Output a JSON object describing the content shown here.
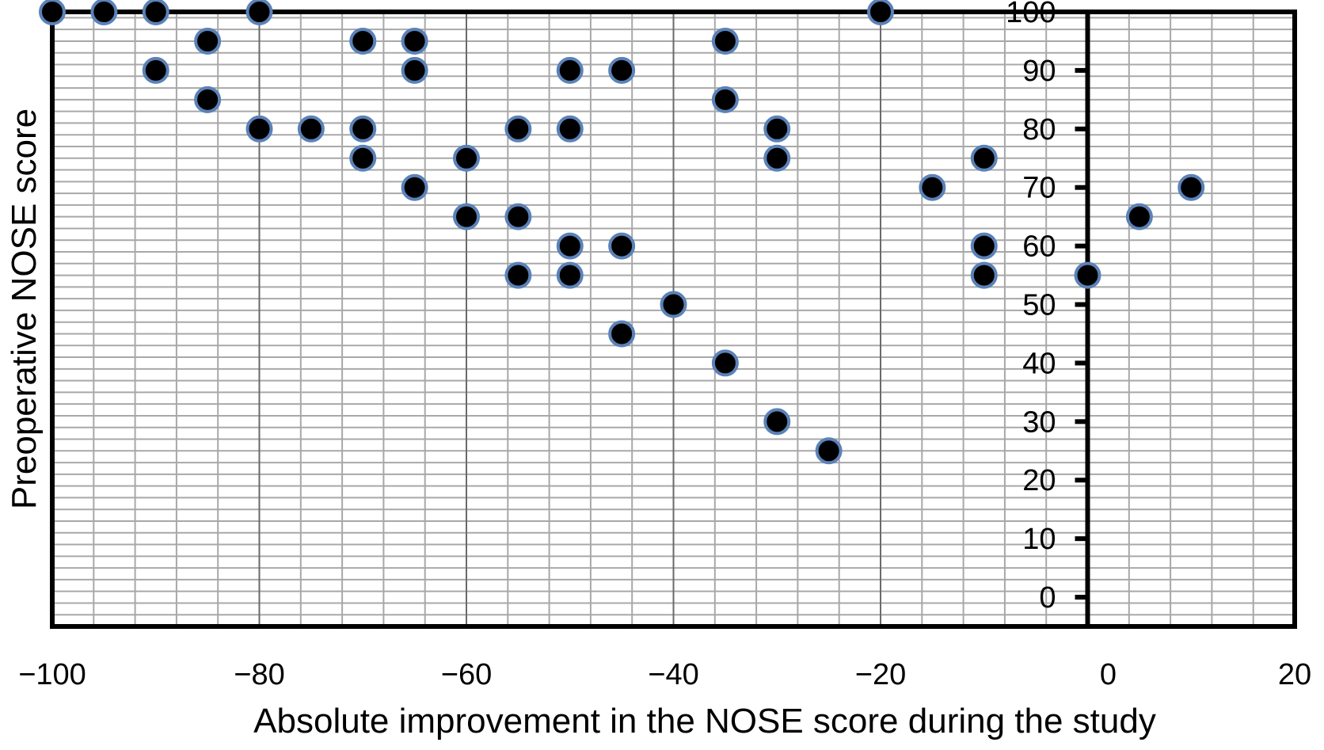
{
  "chart_data": {
    "type": "scatter",
    "title": "",
    "xlabel": "Absolute improvement in the NOSE score during the study",
    "ylabel": "Preoperative NOSE score",
    "xlim": [
      -100,
      20
    ],
    "ylim": [
      -5,
      100
    ],
    "x_ticks": [
      -100,
      -80,
      -60,
      -40,
      -20,
      0,
      20
    ],
    "x_tick_labels": [
      "−100",
      "−80",
      "−60",
      "−40",
      "−20",
      "0",
      "20"
    ],
    "y_ticks": [
      0,
      10,
      20,
      30,
      40,
      50,
      60,
      70,
      80,
      90,
      100
    ],
    "y_tick_labels": [
      "0",
      "10",
      "20",
      "30",
      "40",
      "50",
      "60",
      "70",
      "80",
      "90",
      "100"
    ],
    "grid": true,
    "legend": "none",
    "marker_color": "#000000",
    "marker_edge_color": "#5b82b8",
    "points": [
      {
        "x": -100,
        "y": 100
      },
      {
        "x": -95,
        "y": 100
      },
      {
        "x": -90,
        "y": 100
      },
      {
        "x": -80,
        "y": 100
      },
      {
        "x": -20,
        "y": 100
      },
      {
        "x": -85,
        "y": 95
      },
      {
        "x": -70,
        "y": 95
      },
      {
        "x": -65,
        "y": 95
      },
      {
        "x": -35,
        "y": 95
      },
      {
        "x": -90,
        "y": 90
      },
      {
        "x": -65,
        "y": 90
      },
      {
        "x": -50,
        "y": 90
      },
      {
        "x": -45,
        "y": 90
      },
      {
        "x": -85,
        "y": 85
      },
      {
        "x": -35,
        "y": 85
      },
      {
        "x": -80,
        "y": 80
      },
      {
        "x": -75,
        "y": 80
      },
      {
        "x": -70,
        "y": 80
      },
      {
        "x": -55,
        "y": 80
      },
      {
        "x": -50,
        "y": 80
      },
      {
        "x": -30,
        "y": 80
      },
      {
        "x": -70,
        "y": 75
      },
      {
        "x": -60,
        "y": 75
      },
      {
        "x": -30,
        "y": 75
      },
      {
        "x": -10,
        "y": 75
      },
      {
        "x": -65,
        "y": 70
      },
      {
        "x": -15,
        "y": 70
      },
      {
        "x": 10,
        "y": 70
      },
      {
        "x": -60,
        "y": 65
      },
      {
        "x": -55,
        "y": 65
      },
      {
        "x": 5,
        "y": 65
      },
      {
        "x": -50,
        "y": 60
      },
      {
        "x": -45,
        "y": 60
      },
      {
        "x": -10,
        "y": 60
      },
      {
        "x": -55,
        "y": 55
      },
      {
        "x": -50,
        "y": 55
      },
      {
        "x": -10,
        "y": 55
      },
      {
        "x": 0,
        "y": 55
      },
      {
        "x": -40,
        "y": 50
      },
      {
        "x": -45,
        "y": 45
      },
      {
        "x": -35,
        "y": 40
      },
      {
        "x": -30,
        "y": 30
      },
      {
        "x": -25,
        "y": 25
      }
    ]
  }
}
